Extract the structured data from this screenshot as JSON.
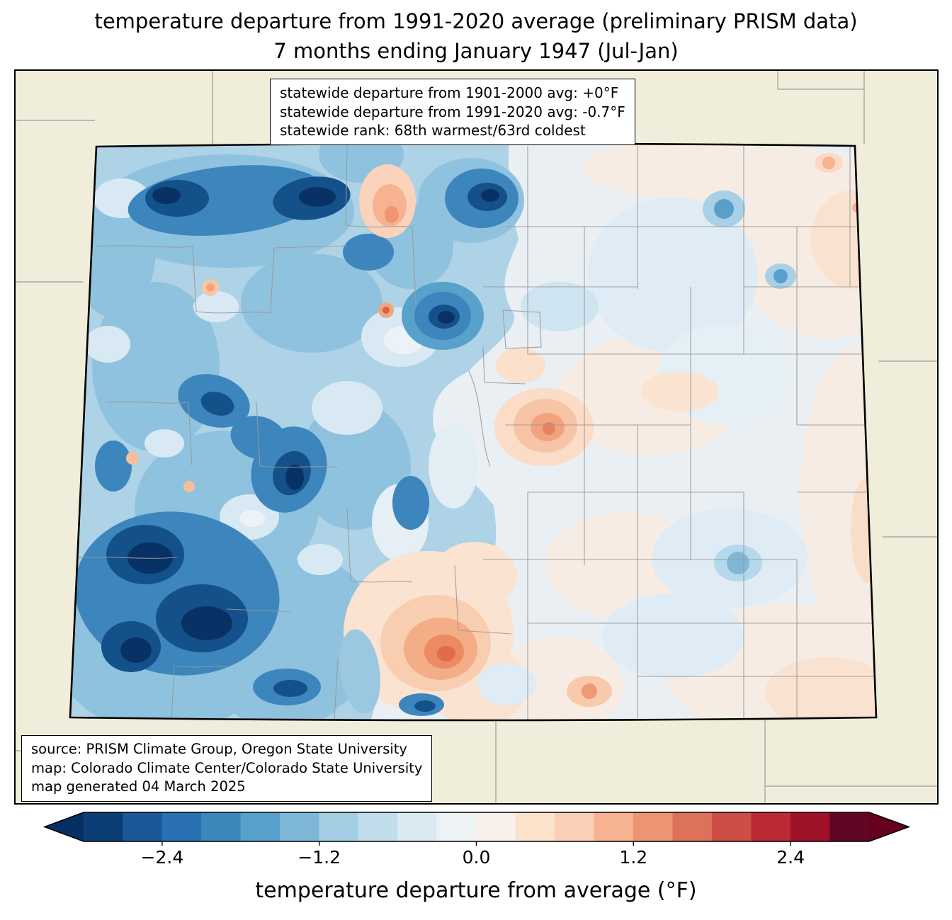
{
  "title": {
    "line1": "temperature departure from 1991-2020 average (preliminary PRISM data)",
    "line2": "7 months ending January 1947 (Jul-Jan)"
  },
  "stats_box": {
    "line1": "statewide departure from 1901-2000 avg: +0°F",
    "line2": "statewide departure from 1991-2020 avg: -0.7°F",
    "line3": "statewide rank: 68th warmest/63rd coldest"
  },
  "source_box": {
    "line1": "source: PRISM Climate Group, Oregon State University",
    "line2": "map: Colorado Climate Center/Colorado State University",
    "line3": "map generated 04 March 2025"
  },
  "colorbar": {
    "label": "temperature departure from average (°F)",
    "ticks": [
      "−2.4",
      "−1.2",
      "0.0",
      "1.2",
      "2.4"
    ],
    "tick_positions": [
      0.1,
      0.3,
      0.5,
      0.7,
      0.9
    ],
    "range": [
      -3.0,
      3.0
    ],
    "segments": [
      "#0c3d74",
      "#1a5899",
      "#2971b2",
      "#3b87bc",
      "#57a0ca",
      "#7fb8d7",
      "#a2cde3",
      "#c1ddec",
      "#dbeaf2",
      "#edf3f5",
      "#f8f0eb",
      "#fce2cb",
      "#fbceb6",
      "#f6b291",
      "#ed9475",
      "#de715a",
      "#cd4e45",
      "#bb2a33",
      "#9f1228",
      "#610622"
    ],
    "arrow_left_color": "#053061",
    "arrow_right_color": "#67001f"
  },
  "map": {
    "region": "Colorado",
    "background_color": "#f0edda",
    "county_line_color": "#999999",
    "state_border_color": "#000000"
  },
  "chart_data": {
    "type": "heatmap",
    "title": "temperature departure from 1991-2020 average (preliminary PRISM data)",
    "subtitle": "7 months ending January 1947 (Jul-Jan)",
    "units": "°F",
    "colorbar_label": "temperature departure from average (°F)",
    "colorbar_ticks": [
      -2.4,
      -1.2,
      0.0,
      1.2,
      2.4
    ],
    "colorbar_range": [
      -3.0,
      3.0
    ],
    "statewide_departure_from_1901_2000_avg": "+0°F",
    "statewide_departure_from_1991_2020_avg": "-0.7°F",
    "statewide_rank": "68th warmest/63rd coldest",
    "pattern_summary": "western/mountain Colorado strongly below average (blues to -3°F), eastern plains near to slightly above average, warm anomalies in south-central and east-central areas (to +1.5°F)"
  }
}
